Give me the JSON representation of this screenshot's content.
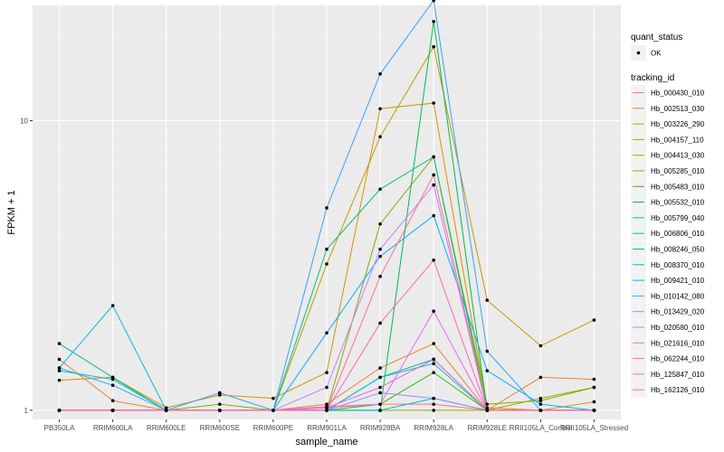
{
  "chart_data": {
    "type": "line",
    "xlabel": "sample_name",
    "ylabel": "FPKM + 1",
    "y_scale": "log10",
    "ylim": [
      0.93,
      25
    ],
    "y_ticks": [
      {
        "value": 1,
        "label": "1"
      },
      {
        "value": 10,
        "label": "10"
      }
    ],
    "grid": true,
    "legend_position": "right",
    "categories": [
      "PB350LA",
      "RRIM600LA",
      "RRIM600LE",
      "RRIM600SE",
      "RRIM600PE",
      "RRIM901LA",
      "RRIM928BA",
      "RRIM928LA",
      "RRIM928LE",
      "RRII105LA_Control",
      "RRII105LA_Stressed"
    ],
    "shape_legend": {
      "title": "quant_status",
      "items": [
        {
          "label": "OK"
        }
      ]
    },
    "color_legend_title": "tracking_id",
    "series": [
      {
        "name": "Hb_000430_010",
        "color": "#F8766D",
        "values": [
          1.0,
          1.0,
          1.0,
          1.0,
          1.0,
          1.02,
          1.05,
          1.05,
          1.0,
          1.0,
          1.0
        ]
      },
      {
        "name": "Hb_002513_030",
        "color": "#EA8331",
        "values": [
          1.5,
          1.08,
          1.0,
          1.0,
          1.0,
          1.05,
          1.4,
          1.7,
          1.0,
          1.3,
          1.28
        ]
      },
      {
        "name": "Hb_003226_290",
        "color": "#D89000",
        "values": [
          1.27,
          1.3,
          1.02,
          1.13,
          1.1,
          1.35,
          11.0,
          11.5,
          1.02,
          1.0,
          1.07
        ]
      },
      {
        "name": "Hb_004157_110",
        "color": "#C09B00",
        "values": [
          1.0,
          1.0,
          1.0,
          1.0,
          1.0,
          3.2,
          8.8,
          18.0,
          2.4,
          1.67,
          2.05
        ]
      },
      {
        "name": "Hb_004413_030",
        "color": "#A3A500",
        "values": [
          1.0,
          1.0,
          1.0,
          1.0,
          1.0,
          1.0,
          1.0,
          1.0,
          1.0,
          1.1,
          1.2
        ]
      },
      {
        "name": "Hb_005285_010",
        "color": "#7CAE00",
        "values": [
          1.0,
          1.0,
          1.0,
          1.05,
          1.0,
          1.0,
          4.4,
          7.5,
          1.05,
          1.08,
          1.2
        ]
      },
      {
        "name": "Hb_005483_010",
        "color": "#39B600",
        "values": [
          1.0,
          1.0,
          1.0,
          1.0,
          1.0,
          1.0,
          1.05,
          1.35,
          1.0,
          1.0,
          1.0
        ]
      },
      {
        "name": "Hb_005532_010",
        "color": "#00BB4E",
        "values": [
          1.0,
          1.0,
          1.0,
          1.0,
          1.0,
          1.0,
          1.0,
          22.0,
          1.0,
          1.0,
          1.0
        ]
      },
      {
        "name": "Hb_005799_040",
        "color": "#00BF7D",
        "values": [
          1.7,
          1.3,
          1.0,
          1.0,
          1.0,
          3.6,
          5.8,
          7.5,
          1.0,
          1.0,
          1.0
        ]
      },
      {
        "name": "Hb_006806_010",
        "color": "#00C1A3",
        "values": [
          1.0,
          1.0,
          1.0,
          1.0,
          1.0,
          1.0,
          1.3,
          1.5,
          1.0,
          1.0,
          1.0
        ]
      },
      {
        "name": "Hb_008246_050",
        "color": "#00BFC4",
        "values": [
          1.37,
          1.28,
          1.0,
          1.0,
          1.0,
          1.0,
          1.3,
          1.45,
          1.0,
          1.0,
          1.0
        ]
      },
      {
        "name": "Hb_008370_010",
        "color": "#00BAE0",
        "values": [
          1.4,
          2.3,
          1.0,
          1.0,
          1.0,
          1.0,
          1.0,
          1.1,
          1.0,
          1.0,
          1.0
        ]
      },
      {
        "name": "Hb_009421_010",
        "color": "#00B0F6",
        "values": [
          1.0,
          1.0,
          1.0,
          1.0,
          1.0,
          1.85,
          3.4,
          4.7,
          1.37,
          1.05,
          1.0
        ]
      },
      {
        "name": "Hb_010142_080",
        "color": "#35A2FF",
        "values": [
          1.4,
          1.22,
          1.0,
          1.15,
          1.0,
          5.0,
          14.5,
          26.0,
          1.6,
          1.0,
          1.0
        ]
      },
      {
        "name": "Hb_013429_020",
        "color": "#9590FF",
        "values": [
          1.0,
          1.0,
          1.0,
          1.0,
          1.0,
          1.0,
          1.15,
          1.1,
          1.0,
          1.0,
          1.0
        ]
      },
      {
        "name": "Hb_020580_010",
        "color": "#C77CFF",
        "values": [
          1.0,
          1.0,
          1.0,
          1.0,
          1.0,
          1.2,
          3.6,
          6.0,
          1.0,
          1.0,
          1.0
        ]
      },
      {
        "name": "Hb_021616_010",
        "color": "#E76BF3",
        "values": [
          1.0,
          1.0,
          1.0,
          1.0,
          1.0,
          1.03,
          1.05,
          2.2,
          1.0,
          1.0,
          1.0
        ]
      },
      {
        "name": "Hb_062244_010",
        "color": "#FA62DB",
        "values": [
          1.0,
          1.0,
          1.0,
          1.0,
          1.0,
          1.02,
          1.2,
          1.5,
          1.0,
          1.0,
          1.0
        ]
      },
      {
        "name": "Hb_125847_010",
        "color": "#FF62BC",
        "values": [
          1.0,
          1.0,
          1.0,
          1.0,
          1.0,
          1.0,
          2.0,
          3.3,
          1.0,
          1.0,
          1.0
        ]
      },
      {
        "name": "Hb_162126_010",
        "color": "#FF6C91",
        "values": [
          1.0,
          1.0,
          1.0,
          1.0,
          1.0,
          1.0,
          2.9,
          6.5,
          1.0,
          1.0,
          1.0
        ]
      }
    ]
  }
}
